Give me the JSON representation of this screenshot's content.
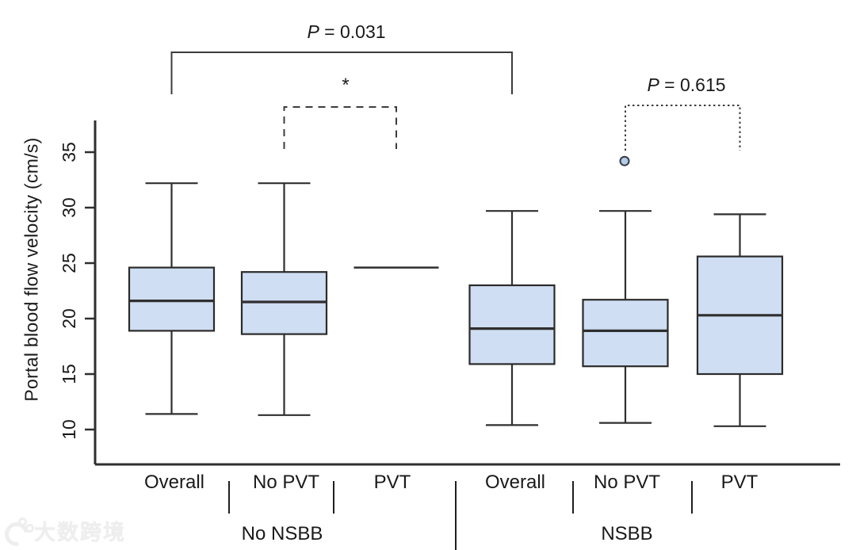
{
  "figure": {
    "watermark": "大数跨境"
  },
  "chart_data": {
    "type": "boxplot",
    "title": "",
    "y_axis": {
      "label": "Portal blood flow velocity (cm/s)",
      "ticks": [
        10,
        15,
        20,
        25,
        30,
        35
      ],
      "ylim": [
        7,
        38
      ],
      "grid": false
    },
    "x_axis": {
      "labels": [
        "Overall",
        "No PVT",
        "PVT",
        "Overall",
        "No PVT",
        "PVT"
      ],
      "group_labels": [
        "No NSBB",
        "NSBB"
      ]
    },
    "groups": [
      {
        "group": "No NSBB",
        "label": "Overall",
        "whisker_low": 11.4,
        "q1": 18.9,
        "median": 21.6,
        "q3": 24.6,
        "whisker_high": 32.2,
        "outliers": []
      },
      {
        "group": "No NSBB",
        "label": "No PVT",
        "whisker_low": 11.3,
        "q1": 18.6,
        "median": 21.5,
        "q3": 24.2,
        "whisker_high": 32.2,
        "outliers": []
      },
      {
        "group": "No NSBB",
        "label": "PVT",
        "single_value": 24.6,
        "outliers": []
      },
      {
        "group": "NSBB",
        "label": "Overall",
        "whisker_low": 10.4,
        "q1": 15.9,
        "median": 19.1,
        "q3": 23.0,
        "whisker_high": 29.7,
        "outliers": []
      },
      {
        "group": "NSBB",
        "label": "No PVT",
        "whisker_low": 10.6,
        "q1": 15.7,
        "median": 18.9,
        "q3": 21.7,
        "whisker_high": 29.7,
        "outliers": [
          34.2
        ]
      },
      {
        "group": "NSBB",
        "label": "PVT",
        "whisker_low": 10.3,
        "q1": 15.0,
        "median": 20.3,
        "q3": 25.6,
        "whisker_high": 29.4,
        "outliers": []
      }
    ],
    "annotations": [
      {
        "type": "bracket",
        "style": "solid",
        "between": [
          "No NSBB Overall",
          "NSBB Overall"
        ],
        "label": "P = 0.031"
      },
      {
        "type": "bracket",
        "style": "dashed",
        "between": [
          "No NSBB No PVT",
          "No NSBB PVT"
        ],
        "label": "*"
      },
      {
        "type": "bracket",
        "style": "dotted",
        "between": [
          "NSBB No PVT",
          "NSBB PVT"
        ],
        "label": "P = 0.615"
      }
    ],
    "colors": {
      "box_fill": "#cfdef2",
      "box_border": "#2b2b2b",
      "line": "#2f2f2f",
      "outlier_fill": "#b3cbe6",
      "text": "#1a1a1a"
    }
  }
}
